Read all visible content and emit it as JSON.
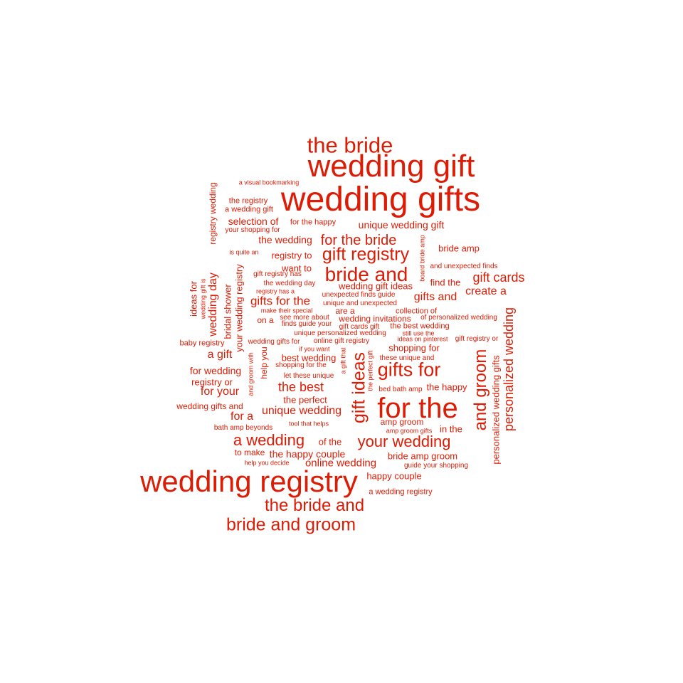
{
  "color": "#dd1c05",
  "words": [
    {
      "text": "wedding gifts",
      "weight": 48
    },
    {
      "text": "wedding registry",
      "weight": 42
    },
    {
      "text": "wedding gift",
      "weight": 44
    },
    {
      "text": "for the",
      "weight": 40
    },
    {
      "text": "the bride",
      "weight": 31
    },
    {
      "text": "bride and",
      "weight": 28
    },
    {
      "text": "gift registry",
      "weight": 25
    },
    {
      "text": "gifts for",
      "weight": 27
    },
    {
      "text": "gift ideas",
      "weight": 25
    },
    {
      "text": "and groom",
      "weight": 24
    },
    {
      "text": "your wedding",
      "weight": 22
    },
    {
      "text": "the bride and",
      "weight": 24
    },
    {
      "text": "bride and groom",
      "weight": 25
    },
    {
      "text": "a wedding",
      "weight": 22
    },
    {
      "text": "for the bride",
      "weight": 20
    },
    {
      "text": "personalized wedding",
      "weight": 18
    },
    {
      "text": "gift cards",
      "weight": 18
    },
    {
      "text": "gifts for the",
      "weight": 17
    },
    {
      "text": "the best",
      "weight": 18
    },
    {
      "text": "unique wedding",
      "weight": 16
    },
    {
      "text": "wedding day",
      "weight": 16
    },
    {
      "text": "unique wedding gift",
      "weight": 14
    },
    {
      "text": "gifts and",
      "weight": 16
    },
    {
      "text": "create a",
      "weight": 16
    },
    {
      "text": "for your",
      "weight": 16
    },
    {
      "text": "online wedding",
      "weight": 15
    },
    {
      "text": "a gift",
      "weight": 16
    },
    {
      "text": "for a",
      "weight": 16
    },
    {
      "text": "selection of",
      "weight": 14
    },
    {
      "text": "the wedding",
      "weight": 14
    },
    {
      "text": "for wedding",
      "weight": 14
    },
    {
      "text": "the happy couple",
      "weight": 14
    },
    {
      "text": "personalized wedding gifts",
      "weight": 13
    },
    {
      "text": "find the",
      "weight": 13
    },
    {
      "text": "wedding gift ideas",
      "weight": 13
    },
    {
      "text": "your wedding registry",
      "weight": 13
    },
    {
      "text": "bridal shower",
      "weight": 13
    },
    {
      "text": "registry wedding",
      "weight": 12
    },
    {
      "text": "registry to",
      "weight": 13
    },
    {
      "text": "want to",
      "weight": 13
    },
    {
      "text": "ideas for",
      "weight": 13
    },
    {
      "text": "shopping for",
      "weight": 13
    },
    {
      "text": "best wedding",
      "weight": 13
    },
    {
      "text": "the perfect",
      "weight": 13
    },
    {
      "text": "registry or",
      "weight": 13
    },
    {
      "text": "bride amp groom",
      "weight": 13
    },
    {
      "text": "happy couple",
      "weight": 13
    },
    {
      "text": "the happy",
      "weight": 13
    },
    {
      "text": "bride amp",
      "weight": 13
    },
    {
      "text": "wedding gifts and",
      "weight": 12
    },
    {
      "text": "amp groom",
      "weight": 12
    },
    {
      "text": "of the",
      "weight": 13
    },
    {
      "text": "in the",
      "weight": 13
    },
    {
      "text": "to make",
      "weight": 12
    },
    {
      "text": "on a",
      "weight": 12
    },
    {
      "text": "are a",
      "weight": 12
    },
    {
      "text": "help you",
      "weight": 12
    },
    {
      "text": "wedding invitations",
      "weight": 12
    },
    {
      "text": "collection of",
      "weight": 11
    },
    {
      "text": "the best wedding",
      "weight": 11
    },
    {
      "text": "the registry",
      "weight": 11
    },
    {
      "text": "a wedding gift",
      "weight": 11
    },
    {
      "text": "a wedding registry",
      "weight": 11
    },
    {
      "text": "baby registry",
      "weight": 11
    },
    {
      "text": "for the happy",
      "weight": 11
    },
    {
      "text": "unique and unexpected",
      "weight": 10
    },
    {
      "text": "and unexpected finds",
      "weight": 10
    },
    {
      "text": "unexpected finds guide",
      "weight": 10
    },
    {
      "text": "of personalized wedding",
      "weight": 10
    },
    {
      "text": "online gift registry",
      "weight": 10
    },
    {
      "text": "gift registry or",
      "weight": 10
    },
    {
      "text": "guide your shopping",
      "weight": 10
    },
    {
      "text": "unique personalized wedding",
      "weight": 10
    },
    {
      "text": "gift cards gift",
      "weight": 10
    },
    {
      "text": "see more about",
      "weight": 10
    },
    {
      "text": "finds guide your",
      "weight": 10
    },
    {
      "text": "wedding gifts for",
      "weight": 10
    },
    {
      "text": "your shopping for",
      "weight": 10
    },
    {
      "text": "shopping for the",
      "weight": 10
    },
    {
      "text": "let these unique",
      "weight": 10
    },
    {
      "text": "these unique and",
      "weight": 10
    },
    {
      "text": "bed bath amp",
      "weight": 10
    },
    {
      "text": "bath amp beyonds",
      "weight": 10
    },
    {
      "text": "the wedding day",
      "weight": 10
    },
    {
      "text": "gift registry has",
      "weight": 10
    },
    {
      "text": "help you decide",
      "weight": 9
    },
    {
      "text": "a visual bookmarking",
      "weight": 9
    },
    {
      "text": "is quite an",
      "weight": 9
    },
    {
      "text": "registry has a",
      "weight": 9
    },
    {
      "text": "make their special",
      "weight": 9
    },
    {
      "text": "if you want",
      "weight": 9
    },
    {
      "text": "tool that helps",
      "weight": 9
    },
    {
      "text": "amp groom gifts",
      "weight": 9
    },
    {
      "text": "still use the",
      "weight": 9
    },
    {
      "text": "ideas on pinterest",
      "weight": 9
    },
    {
      "text": "wedding gift is",
      "weight": 9
    },
    {
      "text": "board bride amp",
      "weight": 9
    },
    {
      "text": "a gift that",
      "weight": 9
    },
    {
      "text": "the perfect gift",
      "weight": 9
    },
    {
      "text": "and groom with",
      "weight": 9
    }
  ]
}
